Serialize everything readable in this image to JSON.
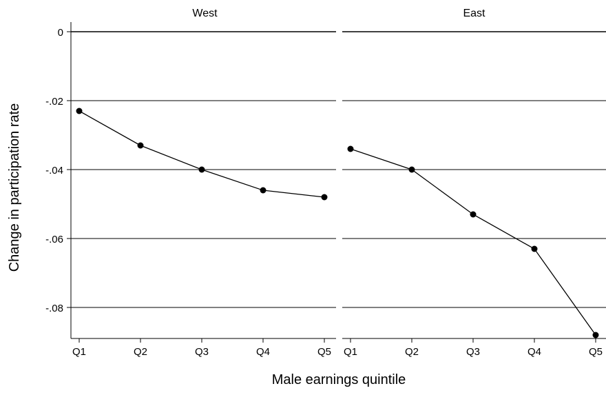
{
  "chart_data": {
    "type": "line",
    "xlabel": "Male earnings quintile",
    "ylabel": "Change in participation rate",
    "categories": [
      "Q1",
      "Q2",
      "Q3",
      "Q4",
      "Q5"
    ],
    "ylim": [
      -0.09,
      0.0
    ],
    "yticks": [
      0,
      -0.02,
      -0.04,
      -0.06,
      -0.08
    ],
    "ytick_labels": [
      "0",
      "-.02",
      "-.04",
      "-.06",
      "-.08"
    ],
    "grid": true,
    "panels": [
      {
        "title": "West",
        "values": [
          -0.023,
          -0.033,
          -0.04,
          -0.046,
          -0.048
        ]
      },
      {
        "title": "East",
        "values": [
          -0.034,
          -0.04,
          -0.053,
          -0.063,
          -0.088
        ]
      }
    ]
  },
  "colors": {
    "line": "#000000",
    "marker": "#000000",
    "grid": "#000000"
  }
}
